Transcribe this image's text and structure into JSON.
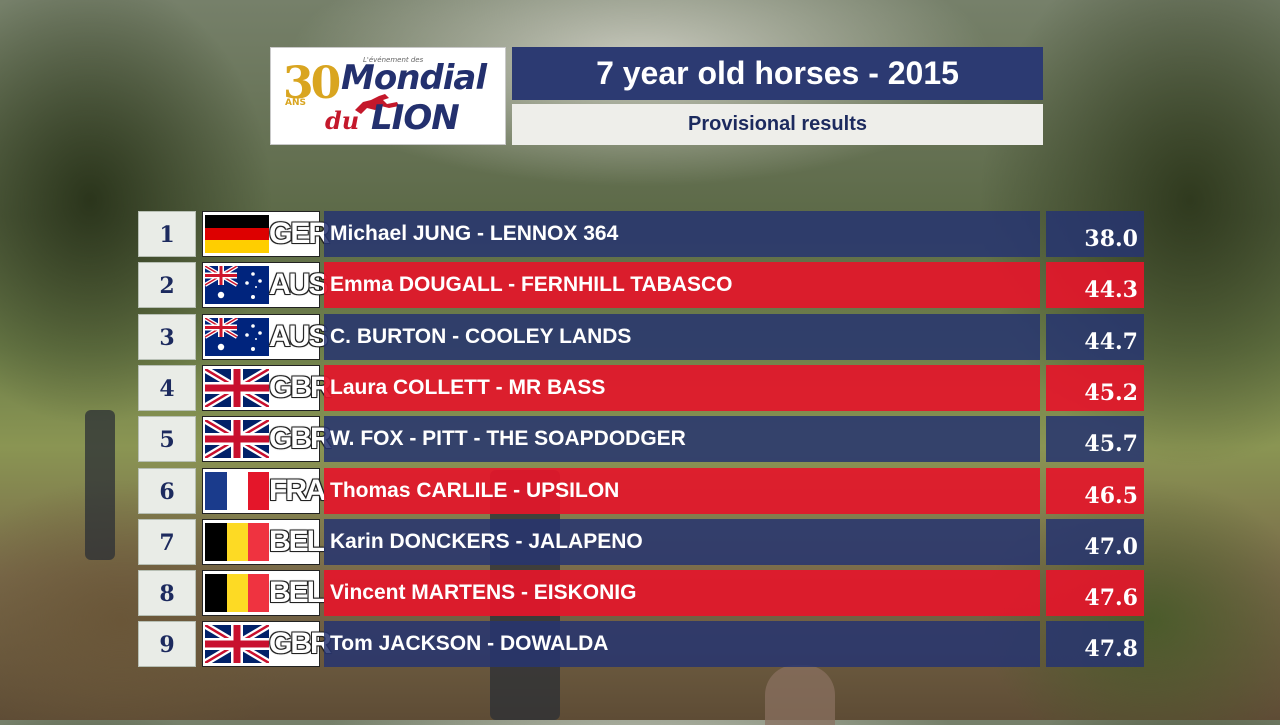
{
  "logo": {
    "number": "30",
    "ans": "ANS",
    "tagline": "L'événement des",
    "word1": "Mondial",
    "word2": "du",
    "word3": "LION"
  },
  "header": {
    "title": "7 year old horses - 2015",
    "subtitle": "Provisional results"
  },
  "colors": {
    "blue_row": "#263470",
    "red_row": "#e4162a",
    "title_bar": "#2c3a72"
  },
  "results": [
    {
      "rank": "1",
      "nation": "GER",
      "flag": "germany-flag",
      "rider_horse": "Michael JUNG - LENNOX 364",
      "score": "38.0",
      "row_color": "blue"
    },
    {
      "rank": "2",
      "nation": "AUS",
      "flag": "australia-flag",
      "rider_horse": "Emma DOUGALL - FERNHILL TABASCO",
      "score": "44.3",
      "row_color": "red"
    },
    {
      "rank": "3",
      "nation": "AUS",
      "flag": "australia-flag",
      "rider_horse": "C. BURTON - COOLEY LANDS",
      "score": "44.7",
      "row_color": "blue"
    },
    {
      "rank": "4",
      "nation": "GBR",
      "flag": "uk-flag",
      "rider_horse": "Laura COLLETT - MR BASS",
      "score": "45.2",
      "row_color": "red"
    },
    {
      "rank": "5",
      "nation": "GBR",
      "flag": "uk-flag",
      "rider_horse": "W. FOX - PITT - THE SOAPDODGER",
      "score": "45.7",
      "row_color": "blue"
    },
    {
      "rank": "6",
      "nation": "FRA",
      "flag": "france-flag",
      "rider_horse": "Thomas CARLILE - UPSILON",
      "score": "46.5",
      "row_color": "red"
    },
    {
      "rank": "7",
      "nation": "BEL",
      "flag": "belgium-flag",
      "rider_horse": "Karin DONCKERS - JALAPENO",
      "score": "47.0",
      "row_color": "blue"
    },
    {
      "rank": "8",
      "nation": "BEL",
      "flag": "belgium-flag",
      "rider_horse": "Vincent MARTENS - EISKONIG",
      "score": "47.6",
      "row_color": "red"
    },
    {
      "rank": "9",
      "nation": "GBR",
      "flag": "uk-flag",
      "rider_horse": "Tom JACKSON - DOWALDA",
      "score": "47.8",
      "row_color": "blue"
    }
  ]
}
